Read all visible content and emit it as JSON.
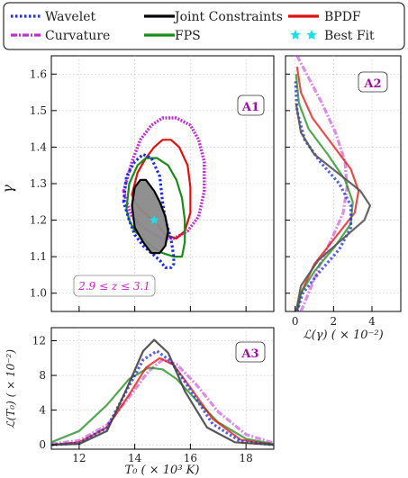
{
  "legend": {
    "items": [
      {
        "label": "Wavelet",
        "color": "#1f2ee0",
        "style": "dotted",
        "kind": "line"
      },
      {
        "label": "Curvature",
        "color": "#c030d0",
        "style": "dashdot",
        "kind": "line"
      },
      {
        "label": "Joint Constraints",
        "color": "#000000",
        "style": "solid",
        "kind": "line"
      },
      {
        "label": "FPS",
        "color": "#1a8a1a",
        "style": "solid",
        "kind": "line"
      },
      {
        "label": "BPDF",
        "color": "#e01010",
        "style": "solid",
        "kind": "line"
      },
      {
        "label": "Best Fit",
        "color": "#18e0e8",
        "style": "star",
        "kind": "marker"
      }
    ],
    "placement": "top"
  },
  "chart_data": [
    {
      "id": "A1",
      "type": "contour",
      "panel_label": "A1",
      "ylabel": "γ",
      "xlim": [
        11,
        19
      ],
      "ylim": [
        0.95,
        1.65
      ],
      "yticks": [
        "1.0",
        "1.1",
        "1.2",
        "1.3",
        "1.4",
        "1.5",
        "1.6"
      ],
      "grid": true,
      "annotation": "2.9 ≤ z ≤ 3.1",
      "best_fit": {
        "x": 14.7,
        "y": 1.2
      },
      "contours": [
        {
          "name": "Curvature",
          "color": "#c030d0",
          "x": [
            13.6,
            13.9,
            14.2,
            14.6,
            15.0,
            15.5,
            16.0,
            16.3,
            16.5,
            16.5,
            16.3,
            15.9,
            15.4,
            15.0,
            14.7,
            14.3,
            13.9,
            13.7,
            13.6
          ],
          "y": [
            1.28,
            1.36,
            1.42,
            1.46,
            1.48,
            1.48,
            1.46,
            1.42,
            1.36,
            1.28,
            1.21,
            1.17,
            1.15,
            1.15,
            1.16,
            1.18,
            1.21,
            1.25,
            1.28
          ]
        },
        {
          "name": "BPDF",
          "color": "#e01010",
          "x": [
            13.9,
            14.1,
            14.4,
            14.7,
            15.0,
            15.3,
            15.6,
            15.9,
            16.0,
            16.0,
            15.8,
            15.5,
            15.1,
            14.8,
            14.5,
            14.2,
            14.0,
            13.9
          ],
          "y": [
            1.27,
            1.33,
            1.37,
            1.4,
            1.42,
            1.42,
            1.4,
            1.35,
            1.29,
            1.22,
            1.17,
            1.15,
            1.16,
            1.19,
            1.21,
            1.23,
            1.25,
            1.27
          ]
        },
        {
          "name": "FPS",
          "color": "#1a8a1a",
          "x": [
            13.7,
            13.8,
            14.1,
            14.4,
            14.8,
            15.2,
            15.5,
            15.7,
            15.8,
            15.8,
            15.7,
            15.4,
            15.0,
            14.6,
            14.3,
            14.0,
            13.8,
            13.7
          ],
          "y": [
            1.23,
            1.3,
            1.35,
            1.37,
            1.37,
            1.35,
            1.31,
            1.26,
            1.2,
            1.14,
            1.1,
            1.1,
            1.11,
            1.13,
            1.15,
            1.17,
            1.2,
            1.23
          ]
        },
        {
          "name": "Wavelet",
          "color": "#1f2ee0",
          "x": [
            13.6,
            13.7,
            14.0,
            14.3,
            14.6,
            14.9,
            15.0,
            15.1,
            15.3,
            15.4,
            15.4,
            15.3,
            15.1,
            14.9,
            14.6,
            14.3,
            14.0,
            13.8,
            13.6
          ],
          "y": [
            1.25,
            1.32,
            1.36,
            1.38,
            1.37,
            1.32,
            1.25,
            1.2,
            1.15,
            1.1,
            1.08,
            1.07,
            1.07,
            1.09,
            1.11,
            1.13,
            1.16,
            1.2,
            1.25
          ]
        },
        {
          "name": "Joint Constraints",
          "color": "#000000",
          "filled": true,
          "x": [
            13.9,
            14.0,
            14.2,
            14.4,
            14.7,
            14.9,
            15.1,
            15.2,
            15.1,
            14.9,
            14.6,
            14.3,
            14.0,
            13.9
          ],
          "y": [
            1.24,
            1.29,
            1.31,
            1.31,
            1.28,
            1.25,
            1.21,
            1.17,
            1.13,
            1.11,
            1.11,
            1.14,
            1.18,
            1.24
          ]
        }
      ]
    },
    {
      "id": "A2",
      "type": "line",
      "panel_label": "A2",
      "xlabel": "ℒ(γ) ( × 10⁻²)",
      "xlim": [
        -0.5,
        5.5
      ],
      "ylim": [
        0.95,
        1.65
      ],
      "xticks": [
        "0",
        "2",
        "4"
      ],
      "series": [
        {
          "name": "Curvature",
          "color": "#c030d0",
          "style": "dashdot",
          "x": [
            0.3,
            0.7,
            1.3,
            2.0,
            2.5,
            2.7,
            2.6,
            2.1,
            1.4,
            0.6,
            0.1
          ],
          "y": [
            0.95,
            1.0,
            1.08,
            1.16,
            1.22,
            1.29,
            1.36,
            1.44,
            1.52,
            1.6,
            1.65
          ]
        },
        {
          "name": "BPDF",
          "color": "#e01010",
          "style": "solid",
          "x": [
            0.1,
            0.3,
            1.0,
            2.2,
            3.1,
            3.3,
            2.9,
            1.9,
            0.9,
            0.3,
            0.1
          ],
          "y": [
            0.95,
            1.0,
            1.08,
            1.16,
            1.22,
            1.28,
            1.34,
            1.41,
            1.48,
            1.55,
            1.62
          ]
        },
        {
          "name": "FPS",
          "color": "#1a8a1a",
          "style": "solid",
          "x": [
            0.1,
            0.3,
            1.0,
            2.1,
            2.9,
            3.0,
            2.6,
            1.7,
            0.7,
            0.2,
            0.05
          ],
          "y": [
            0.95,
            1.0,
            1.06,
            1.13,
            1.19,
            1.25,
            1.31,
            1.38,
            1.45,
            1.52,
            1.6
          ]
        },
        {
          "name": "Wavelet",
          "color": "#1f2ee0",
          "style": "dotted",
          "x": [
            0.1,
            0.4,
            1.3,
            2.3,
            2.9,
            2.9,
            2.3,
            1.3,
            0.5,
            0.1,
            0.02
          ],
          "y": [
            0.95,
            1.0,
            1.06,
            1.12,
            1.18,
            1.24,
            1.3,
            1.36,
            1.42,
            1.5,
            1.58
          ]
        },
        {
          "name": "Joint Constraints",
          "color": "#555555",
          "style": "solid",
          "x": [
            0.05,
            0.3,
            1.2,
            2.5,
            3.6,
            3.9,
            3.4,
            2.2,
            1.0,
            0.3,
            0.05
          ],
          "y": [
            0.95,
            1.02,
            1.09,
            1.15,
            1.2,
            1.24,
            1.28,
            1.33,
            1.38,
            1.44,
            1.52
          ]
        }
      ]
    },
    {
      "id": "A3",
      "type": "line",
      "panel_label": "A3",
      "xlabel": "T₀ ( × 10³ K)",
      "ylabel": "ℒ(T₀) ( × 10⁻²)",
      "xlim": [
        11,
        19
      ],
      "ylim": [
        -0.5,
        13.5
      ],
      "xticks": [
        "12",
        "14",
        "16",
        "18"
      ],
      "yticks": [
        "0",
        "4",
        "8",
        "12"
      ],
      "series": [
        {
          "name": "Curvature",
          "color": "#c030d0",
          "style": "dashdot",
          "x": [
            11.0,
            12.0,
            13.0,
            13.8,
            14.5,
            15.0,
            15.5,
            16.2,
            17.0,
            18.0,
            19.0
          ],
          "y": [
            0.1,
            0.5,
            2.3,
            5.5,
            8.5,
            9.8,
            9.3,
            7.0,
            3.8,
            1.2,
            0.2
          ]
        },
        {
          "name": "FPS",
          "color": "#1a8a1a",
          "style": "solid",
          "x": [
            11.0,
            12.0,
            13.0,
            13.8,
            14.5,
            15.0,
            15.5,
            16.2,
            17.0,
            18.0,
            19.0
          ],
          "y": [
            0.3,
            1.6,
            4.6,
            7.6,
            8.9,
            8.7,
            7.6,
            5.2,
            2.6,
            0.7,
            0.1
          ]
        },
        {
          "name": "BPDF",
          "color": "#e01010",
          "style": "solid",
          "x": [
            11.0,
            12.0,
            13.0,
            13.8,
            14.4,
            14.9,
            15.4,
            16.0,
            16.8,
            17.8,
            19.0
          ],
          "y": [
            0.0,
            0.3,
            2.0,
            5.8,
            8.9,
            10.0,
            9.2,
            6.6,
            3.0,
            0.6,
            0.0
          ]
        },
        {
          "name": "Wavelet",
          "color": "#1f2ee0",
          "style": "dotted",
          "x": [
            11.0,
            12.0,
            13.0,
            13.7,
            14.3,
            14.8,
            15.3,
            16.0,
            16.8,
            17.8,
            19.0
          ],
          "y": [
            0.0,
            0.2,
            2.0,
            6.2,
            9.8,
            10.8,
            9.6,
            6.3,
            2.4,
            0.4,
            0.0
          ]
        },
        {
          "name": "Joint Constraints",
          "color": "#444444",
          "style": "solid",
          "x": [
            11.0,
            12.0,
            13.0,
            13.7,
            14.3,
            14.7,
            15.2,
            15.8,
            16.6,
            17.6,
            19.0
          ],
          "y": [
            0.0,
            0.1,
            1.6,
            6.4,
            10.8,
            12.1,
            10.6,
            6.2,
            2.0,
            0.3,
            0.0
          ]
        }
      ]
    }
  ]
}
